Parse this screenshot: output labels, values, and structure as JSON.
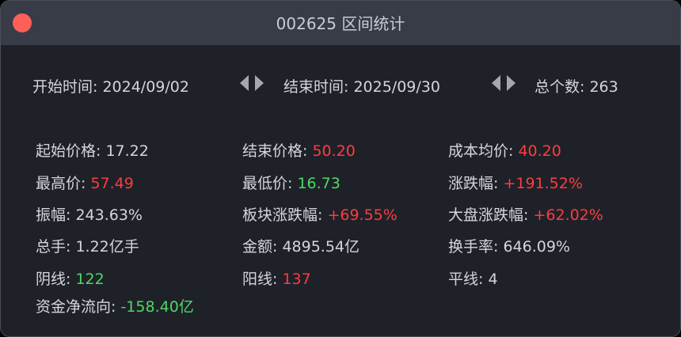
{
  "window": {
    "title": "002625 区间统计"
  },
  "range": {
    "start_label": "开始时间: ",
    "start_value": "2024/09/02",
    "end_label": "结束时间: ",
    "end_value": "2025/09/30",
    "count_label": "总个数: ",
    "count_value": "263"
  },
  "stats": [
    {
      "label": "起始价格: ",
      "value": "17.22",
      "color": "neutral"
    },
    {
      "label": "结束价格: ",
      "value": "50.20",
      "color": "red"
    },
    {
      "label": "成本均价: ",
      "value": "40.20",
      "color": "red"
    },
    {
      "label": "最高价: ",
      "value": "57.49",
      "color": "red"
    },
    {
      "label": "最低价: ",
      "value": "16.73",
      "color": "green"
    },
    {
      "label": "涨跌幅: ",
      "value": "+191.52%",
      "color": "red"
    },
    {
      "label": "振幅: ",
      "value": "243.63%",
      "color": "neutral"
    },
    {
      "label": "板块涨跌幅: ",
      "value": "+69.55%",
      "color": "red"
    },
    {
      "label": "大盘涨跌幅: ",
      "value": "+62.02%",
      "color": "red"
    },
    {
      "label": "总手: ",
      "value": "1.22亿手",
      "color": "neutral"
    },
    {
      "label": "金额: ",
      "value": "4895.54亿",
      "color": "neutral"
    },
    {
      "label": "换手率: ",
      "value": "646.09%",
      "color": "neutral"
    },
    {
      "label": "阴线: ",
      "value": "122",
      "color": "green"
    },
    {
      "label": "阳线: ",
      "value": "137",
      "color": "red"
    },
    {
      "label": "平线: ",
      "value": "4",
      "color": "neutral"
    },
    {
      "label": "资金净流向: ",
      "value": "-158.40亿",
      "color": "green"
    }
  ],
  "colors": {
    "red": "#fc3d3d",
    "green": "#4cd964",
    "neutral": "#d4d6db"
  }
}
